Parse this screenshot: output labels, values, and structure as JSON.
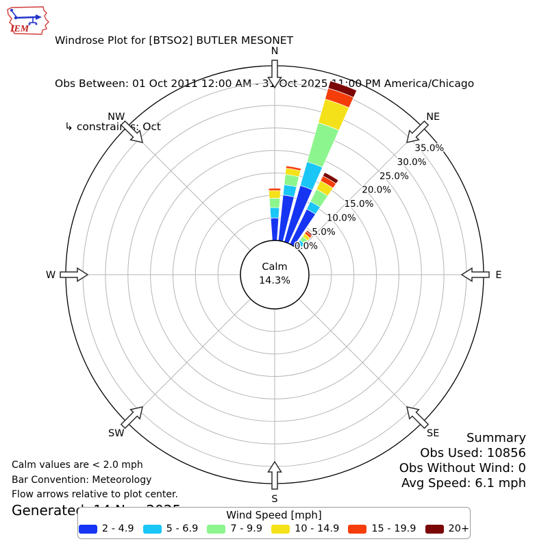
{
  "header": {
    "logo_text": "IEM",
    "title": "Windrose Plot for [BTSO2] BUTLER MESONET",
    "subtitle": "Obs Between: 01 Oct 2011 12:00 AM - 31 Oct 2025 11:00 PM America/Chicago",
    "constraints": "↳ constraints: Oct"
  },
  "notes": {
    "line1": "Calm values are < 2.0 mph",
    "line2": "Bar Convention: Meteorology",
    "line3": "Flow arrows relative to plot center.",
    "generated": "Generated: 14 Nov 2025"
  },
  "summary": {
    "title": "Summary",
    "obs_used": "Obs Used: 10856",
    "obs_without_wind": "Obs Without Wind: 0",
    "avg_speed": "Avg Speed: 6.1 mph"
  },
  "legend": {
    "title": "Wind Speed [mph]"
  },
  "chart_data": {
    "type": "windrose",
    "title": "Windrose Plot for [BTSO2] BUTLER MESONET",
    "calm": {
      "label": "Calm",
      "value": "14.3%"
    },
    "compass_points": [
      "N",
      "NE",
      "E",
      "SE",
      "S",
      "SW",
      "W",
      "NW"
    ],
    "r_axis": {
      "unit": "percent",
      "ticks": [
        0,
        5,
        10,
        15,
        20,
        25,
        30,
        35
      ],
      "tick_labels": [
        "0.0%",
        "5.0%",
        "10.0%",
        "15.0%",
        "20.0%",
        "25.0%",
        "30.0%",
        "35.0%"
      ],
      "outer_max": 38.8,
      "label_bearing_deg": 51.5
    },
    "speed_bins": [
      {
        "label": "2 - 4.9",
        "color": "#1535f3"
      },
      {
        "label": "5 - 6.9",
        "color": "#19c6f5"
      },
      {
        "label": "7 - 9.9",
        "color": "#8df58d"
      },
      {
        "label": "10 - 14.9",
        "color": "#f5e11a"
      },
      {
        "label": "15 - 19.9",
        "color": "#f53d0a"
      },
      {
        "label": "20+",
        "color": "#7a0606"
      }
    ],
    "bar_width_deg": 8,
    "bars": [
      {
        "direction_deg": 0,
        "values": [
          5.0,
          2.3,
          2.1,
          1.7,
          0.5,
          0.0
        ]
      },
      {
        "direction_deg": 10,
        "values": [
          10.2,
          2.3,
          2.3,
          1.4,
          0.5,
          0.0
        ]
      },
      {
        "direction_deg": 20,
        "values": [
          13.0,
          5.5,
          9.0,
          5.5,
          2.5,
          1.7
        ]
      },
      {
        "direction_deg": 30,
        "values": [
          8.6,
          1.9,
          3.0,
          2.1,
          1.2,
          0.9
        ]
      },
      {
        "direction_deg": 40,
        "values": [
          0.9,
          1.0,
          1.0,
          0.8,
          0.6,
          0.3
        ]
      }
    ]
  }
}
